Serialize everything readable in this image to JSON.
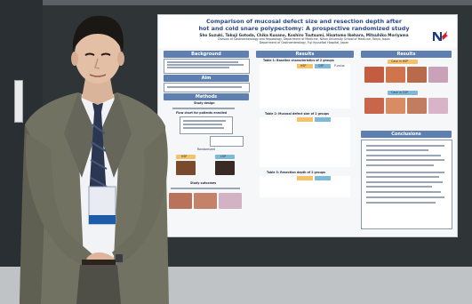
{
  "poster": {
    "title_line1": "Comparison of mucosal defect size and resection depth after",
    "title_line2": "hot and cold snare polypectomy: A prospective randomized study",
    "authors": "Sho Suzuki, Takuji Gotoda, Chika Kusano, Koshiro Tsutsumi, Hisatomo Ikehara, Mitsuhiko Moriyama",
    "affiliation1": "Division of Gastroenterology and Hepatology, Department of Medicine, Nihon University School of Medicine, Tokyo, Japan",
    "affiliation2": "Department of Gastroenterology, Fuji Kyuseikai Hospital, Japan",
    "sections": {
      "background": "Background",
      "aim": "Aim",
      "methods": "Methods",
      "results": "Results",
      "results_right": "Results",
      "conclusions": "Conclusions"
    },
    "methods_labels": {
      "study_design": "Study design",
      "flow_chart": "Flow chart for patients enrolled",
      "randomized": "Randomized",
      "hsp": "HSP",
      "csp": "CSP",
      "study_outcomes": "Study outcomes"
    },
    "table_titles": {
      "t1": "Table 1: Baseline characteristics of 2 groups",
      "t2": "Table 2: Mucosal defect size of 2 groups",
      "t3": "Table 3: Resection depth of 2 groups"
    },
    "table_headers": {
      "hsp": "HSP",
      "csp": "CSP",
      "pvalue": "P-value"
    },
    "results_labels": {
      "case_hsp": "Case in HSP",
      "case_csp": "Case in CSP"
    }
  }
}
